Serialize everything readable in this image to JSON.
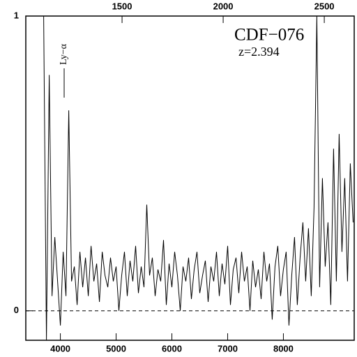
{
  "chart_data": {
    "type": "line",
    "annotations": [
      "CDF−076",
      "z=2.394",
      "Ly−α"
    ],
    "x": [
      3700,
      3750,
      3800,
      3850,
      3900,
      3950,
      4000,
      4050,
      4100,
      4150,
      4200,
      4250,
      4300,
      4350,
      4400,
      4450,
      4500,
      4550,
      4600,
      4650,
      4700,
      4750,
      4800,
      4850,
      4900,
      4950,
      5000,
      5050,
      5100,
      5150,
      5200,
      5250,
      5300,
      5350,
      5400,
      5450,
      5500,
      5550,
      5600,
      5650,
      5700,
      5750,
      5800,
      5850,
      5900,
      5950,
      6000,
      6050,
      6100,
      6150,
      6200,
      6250,
      6300,
      6350,
      6400,
      6450,
      6500,
      6550,
      6600,
      6650,
      6700,
      6750,
      6800,
      6850,
      6900,
      6950,
      7000,
      7050,
      7100,
      7150,
      7200,
      7250,
      7300,
      7350,
      7400,
      7450,
      7500,
      7550,
      7600,
      7650,
      7700,
      7750,
      7800,
      7850,
      7900,
      7950,
      8000,
      8050,
      8100,
      8150,
      8200,
      8250,
      8300,
      8350,
      8400,
      8450,
      8500,
      8550,
      8600,
      8650,
      8700,
      8750,
      8800,
      8850,
      8900,
      8950,
      9000,
      9050,
      9100,
      9150,
      9200,
      9250
    ],
    "values": [
      1.0,
      -0.1,
      0.8,
      0.05,
      0.25,
      0.1,
      -0.05,
      0.2,
      0.05,
      0.68,
      0.1,
      0.15,
      0.02,
      0.2,
      0.08,
      0.18,
      0.05,
      0.22,
      0.1,
      0.16,
      0.03,
      0.2,
      0.12,
      0.08,
      0.18,
      0.1,
      0.15,
      0.0,
      0.12,
      0.2,
      0.05,
      0.17,
      0.1,
      0.22,
      0.06,
      0.15,
      0.08,
      0.36,
      0.12,
      0.18,
      0.05,
      0.14,
      0.1,
      0.24,
      0.02,
      0.16,
      0.08,
      0.2,
      0.12,
      0.0,
      0.15,
      0.1,
      0.18,
      0.04,
      0.14,
      0.2,
      0.06,
      0.12,
      0.17,
      0.03,
      0.15,
      0.1,
      0.2,
      0.05,
      0.16,
      0.09,
      0.22,
      0.02,
      0.14,
      0.18,
      0.06,
      0.2,
      0.1,
      0.15,
      0.0,
      0.17,
      0.08,
      0.14,
      0.04,
      0.2,
      0.1,
      0.16,
      -0.03,
      0.15,
      0.22,
      0.05,
      0.14,
      0.2,
      -0.05,
      0.12,
      0.25,
      0.02,
      0.18,
      0.3,
      0.1,
      0.28,
      0.05,
      0.35,
      1.0,
      0.08,
      0.45,
      0.15,
      0.3,
      0.02,
      0.55,
      0.1,
      0.6,
      0.2,
      0.45,
      0.1,
      0.5,
      0.3
    ],
    "color": "#000000",
    "xlim": [
      3380,
      9270
    ],
    "xticks": [
      4000,
      5000,
      6000,
      7000,
      8000
    ],
    "x2lim": [
      1024,
      2648
    ],
    "x2ticks": [
      1500,
      2000,
      2500
    ],
    "ylim": [
      -0.1,
      1
    ],
    "yticks": [
      0,
      1
    ],
    "zero_line": true
  }
}
